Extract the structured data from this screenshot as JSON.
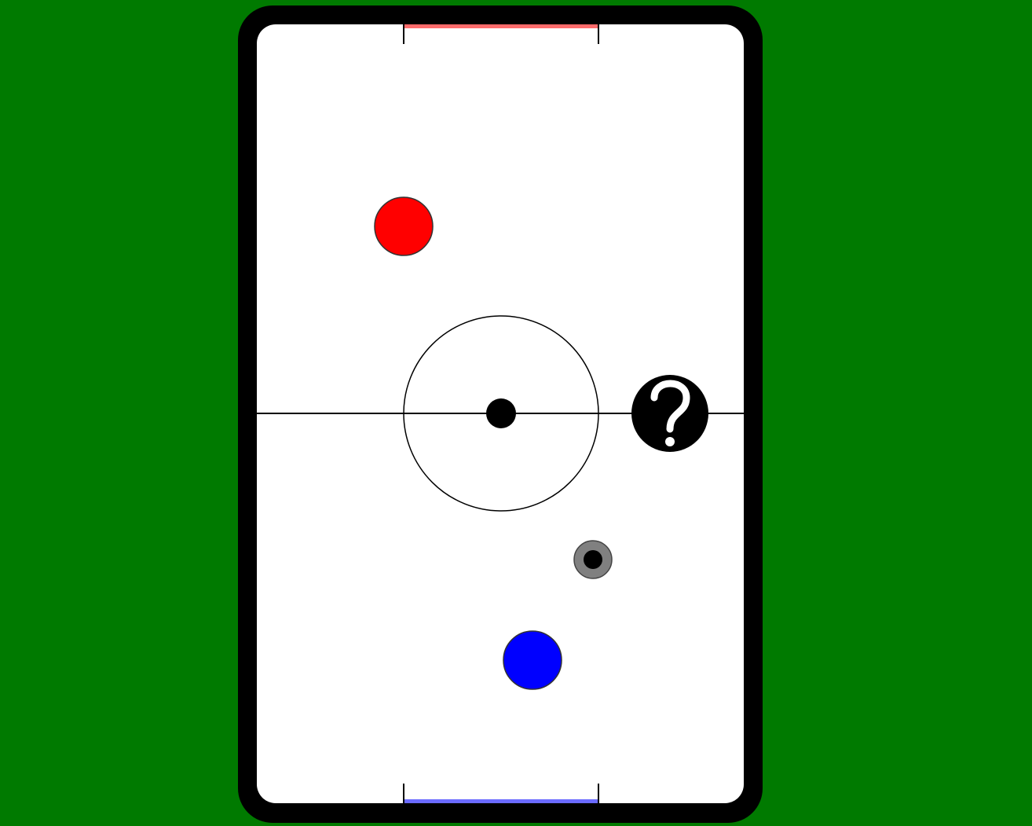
{
  "game": {
    "background_color": "#007a00",
    "table_color": "#ffffff",
    "border_color": "#000000",
    "line_color": "#000000",
    "goal_top_color": "#ff6b6b",
    "goal_bottom_color": "#6b6bff"
  },
  "paddles": {
    "opponent": {
      "color": "#ff0000"
    },
    "player": {
      "color": "#0000ff"
    }
  },
  "puck": {
    "outer_color": "#808080",
    "inner_color": "#000000"
  },
  "help_button": {
    "label": "?",
    "icon": "question-mark-icon"
  }
}
